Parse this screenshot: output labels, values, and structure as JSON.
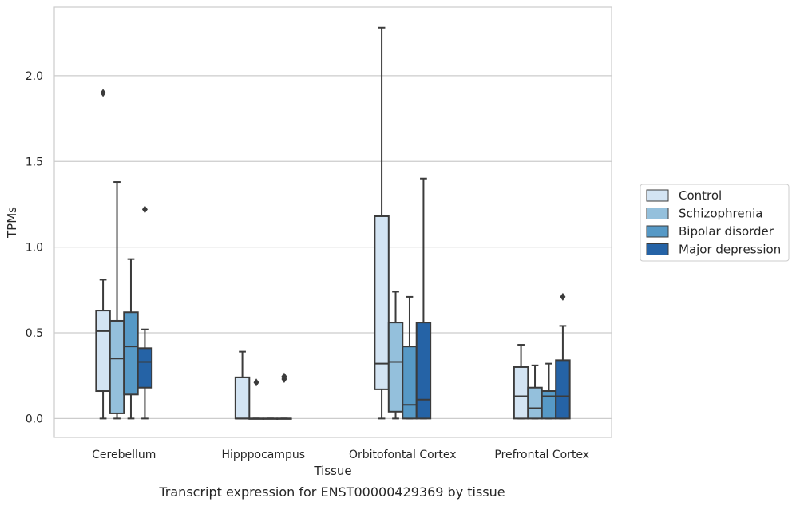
{
  "chart_data": {
    "type": "box",
    "xlabel": "Tissue",
    "ylabel": "TPMs",
    "caption": "Transcript expression for ENST00000429369 by tissue",
    "categories": [
      "Cerebellum",
      "Hipppocampus",
      "Orbitofontal Cortex",
      "Prefrontal Cortex"
    ],
    "ylim": [
      -0.11,
      2.4
    ],
    "yticks": [
      0.0,
      0.5,
      1.0,
      1.5,
      2.0
    ],
    "ytick_labels": [
      "0.0",
      "0.5",
      "1.0",
      "1.5",
      "2.0"
    ],
    "grid": "horizontal",
    "legend_position": "right",
    "series": [
      {
        "name": "Control",
        "color": "#d3e4f3",
        "boxes": [
          {
            "whislo": 0.0,
            "q1": 0.16,
            "med": 0.51,
            "q3": 0.63,
            "whishi": 0.81,
            "fliers": [
              1.9
            ]
          },
          {
            "whislo": 0.0,
            "q1": 0.0,
            "med": 0.0,
            "q3": 0.24,
            "whishi": 0.39,
            "fliers": []
          },
          {
            "whislo": 0.0,
            "q1": 0.17,
            "med": 0.32,
            "q3": 1.18,
            "whishi": 2.28,
            "fliers": []
          },
          {
            "whislo": 0.0,
            "q1": 0.0,
            "med": 0.13,
            "q3": 0.3,
            "whishi": 0.43,
            "fliers": []
          }
        ]
      },
      {
        "name": "Schizophrenia",
        "color": "#94c0dc",
        "boxes": [
          {
            "whislo": 0.0,
            "q1": 0.03,
            "med": 0.35,
            "q3": 0.57,
            "whishi": 1.38,
            "fliers": []
          },
          {
            "whislo": 0.0,
            "q1": 0.0,
            "med": 0.0,
            "q3": 0.0,
            "whishi": 0.0,
            "fliers": [
              0.21
            ]
          },
          {
            "whislo": 0.0,
            "q1": 0.04,
            "med": 0.33,
            "q3": 0.56,
            "whishi": 0.74,
            "fliers": []
          },
          {
            "whislo": 0.0,
            "q1": 0.0,
            "med": 0.06,
            "q3": 0.18,
            "whishi": 0.31,
            "fliers": []
          }
        ]
      },
      {
        "name": "Bipolar disorder",
        "color": "#5699c6",
        "boxes": [
          {
            "whislo": 0.0,
            "q1": 0.14,
            "med": 0.42,
            "q3": 0.62,
            "whishi": 0.93,
            "fliers": []
          },
          {
            "whislo": 0.0,
            "q1": 0.0,
            "med": 0.0,
            "q3": 0.0,
            "whishi": 0.0,
            "fliers": []
          },
          {
            "whislo": 0.0,
            "q1": 0.0,
            "med": 0.08,
            "q3": 0.42,
            "whishi": 0.71,
            "fliers": []
          },
          {
            "whislo": 0.0,
            "q1": 0.0,
            "med": 0.13,
            "q3": 0.16,
            "whishi": 0.32,
            "fliers": []
          }
        ]
      },
      {
        "name": "Major depression",
        "color": "#2563a6",
        "boxes": [
          {
            "whislo": 0.0,
            "q1": 0.18,
            "med": 0.33,
            "q3": 0.41,
            "whishi": 0.52,
            "fliers": [
              1.22
            ]
          },
          {
            "whislo": 0.0,
            "q1": 0.0,
            "med": 0.0,
            "q3": 0.0,
            "whishi": 0.0,
            "fliers": [
              0.23,
              0.245
            ]
          },
          {
            "whislo": 0.0,
            "q1": 0.0,
            "med": 0.11,
            "q3": 0.56,
            "whishi": 1.4,
            "fliers": []
          },
          {
            "whislo": 0.0,
            "q1": 0.0,
            "med": 0.13,
            "q3": 0.34,
            "whishi": 0.54,
            "fliers": [
              0.71
            ]
          }
        ]
      }
    ]
  }
}
